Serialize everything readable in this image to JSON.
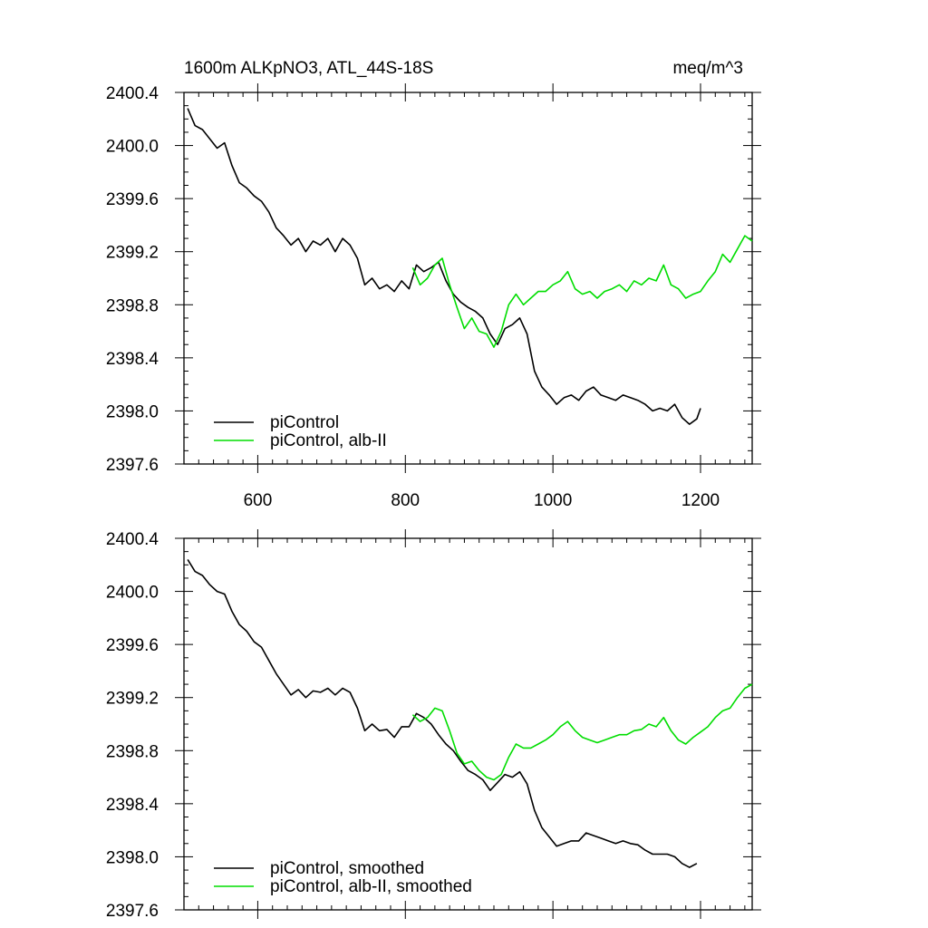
{
  "header": {
    "title_left": "1600m ALKpNO3, ATL_44S-18S",
    "title_right": "meq/m^3"
  },
  "chart_data": [
    {
      "type": "line",
      "xlim": [
        500,
        1270
      ],
      "ylim": [
        2397.6,
        2400.4
      ],
      "x_ticks": [
        "600",
        "800",
        "1000",
        "1200"
      ],
      "y_ticks": [
        "2400.4",
        "2400.0",
        "2399.6",
        "2399.2",
        "2398.8",
        "2398.4",
        "2398.0",
        "2397.6"
      ],
      "legend_placement": "bottom-left",
      "series": [
        {
          "name": "piControl",
          "color": "#000000",
          "x": [
            505,
            515,
            525,
            535,
            545,
            555,
            565,
            575,
            585,
            595,
            605,
            615,
            625,
            635,
            645,
            655,
            665,
            675,
            685,
            695,
            705,
            715,
            725,
            735,
            745,
            755,
            765,
            775,
            785,
            795,
            805,
            815,
            825,
            835,
            845,
            855,
            865,
            875,
            885,
            895,
            905,
            915,
            925,
            935,
            945,
            955,
            965,
            975,
            985,
            995,
            1005,
            1015,
            1025,
            1035,
            1045,
            1055,
            1065,
            1075,
            1085,
            1095,
            1105,
            1115,
            1125,
            1135,
            1145,
            1155,
            1165,
            1175,
            1185,
            1195,
            1200
          ],
          "y": [
            2400.28,
            2400.15,
            2400.12,
            2400.05,
            2399.98,
            2400.02,
            2399.85,
            2399.72,
            2399.68,
            2399.62,
            2399.58,
            2399.5,
            2399.38,
            2399.32,
            2399.25,
            2399.3,
            2399.2,
            2399.28,
            2399.25,
            2399.3,
            2399.2,
            2399.3,
            2399.25,
            2399.15,
            2398.95,
            2399.0,
            2398.92,
            2398.95,
            2398.9,
            2398.98,
            2398.92,
            2399.1,
            2399.05,
            2399.08,
            2399.12,
            2398.98,
            2398.88,
            2398.82,
            2398.78,
            2398.75,
            2398.7,
            2398.58,
            2398.5,
            2398.62,
            2398.65,
            2398.7,
            2398.58,
            2398.3,
            2398.18,
            2398.12,
            2398.05,
            2398.1,
            2398.12,
            2398.08,
            2398.15,
            2398.18,
            2398.12,
            2398.1,
            2398.08,
            2398.12,
            2398.1,
            2398.08,
            2398.05,
            2398.0,
            2398.02,
            2398.0,
            2398.05,
            2397.95,
            2397.9,
            2397.94,
            2398.02
          ]
        },
        {
          "name": "piControl, alb-II",
          "color": "#00dd00",
          "x": [
            810,
            820,
            830,
            840,
            850,
            860,
            870,
            880,
            890,
            900,
            910,
            920,
            930,
            940,
            950,
            960,
            970,
            980,
            990,
            1000,
            1010,
            1020,
            1030,
            1040,
            1050,
            1060,
            1070,
            1080,
            1090,
            1100,
            1110,
            1120,
            1130,
            1140,
            1150,
            1160,
            1170,
            1180,
            1190,
            1200,
            1210,
            1220,
            1230,
            1240,
            1250,
            1260,
            1270
          ],
          "y": [
            2399.08,
            2398.95,
            2399.0,
            2399.1,
            2399.15,
            2398.95,
            2398.78,
            2398.62,
            2398.7,
            2398.6,
            2398.58,
            2398.48,
            2398.6,
            2398.8,
            2398.88,
            2398.8,
            2398.85,
            2398.9,
            2398.9,
            2398.95,
            2398.98,
            2399.05,
            2398.92,
            2398.88,
            2398.9,
            2398.85,
            2398.9,
            2398.92,
            2398.95,
            2398.9,
            2398.98,
            2398.95,
            2399.0,
            2398.98,
            2399.1,
            2398.95,
            2398.92,
            2398.85,
            2398.88,
            2398.9,
            2398.98,
            2399.05,
            2399.18,
            2399.12,
            2399.22,
            2399.32,
            2399.28
          ]
        }
      ]
    },
    {
      "type": "line",
      "xlim": [
        500,
        1270
      ],
      "ylim": [
        2397.6,
        2400.4
      ],
      "y_ticks": [
        "2400.4",
        "2400.0",
        "2399.6",
        "2399.2",
        "2398.8",
        "2398.4",
        "2398.0",
        "2397.6"
      ],
      "legend_placement": "bottom-left",
      "series": [
        {
          "name": "piControl, smoothed",
          "color": "#000000",
          "x": [
            505,
            515,
            525,
            535,
            545,
            555,
            565,
            575,
            585,
            595,
            605,
            615,
            625,
            635,
            645,
            655,
            665,
            675,
            685,
            695,
            705,
            715,
            725,
            735,
            745,
            755,
            765,
            775,
            785,
            795,
            805,
            815,
            825,
            835,
            845,
            855,
            865,
            875,
            885,
            895,
            905,
            915,
            925,
            935,
            945,
            955,
            965,
            975,
            985,
            995,
            1005,
            1015,
            1025,
            1035,
            1045,
            1055,
            1065,
            1075,
            1085,
            1095,
            1105,
            1115,
            1125,
            1135,
            1145,
            1155,
            1165,
            1175,
            1185,
            1195
          ],
          "y": [
            2400.24,
            2400.15,
            2400.12,
            2400.05,
            2400.0,
            2399.98,
            2399.85,
            2399.75,
            2399.7,
            2399.62,
            2399.58,
            2399.48,
            2399.38,
            2399.3,
            2399.22,
            2399.26,
            2399.2,
            2399.25,
            2399.24,
            2399.27,
            2399.22,
            2399.27,
            2399.24,
            2399.12,
            2398.95,
            2399.0,
            2398.95,
            2398.96,
            2398.9,
            2398.98,
            2398.98,
            2399.08,
            2399.05,
            2399.0,
            2398.92,
            2398.85,
            2398.8,
            2398.72,
            2398.65,
            2398.62,
            2398.58,
            2398.5,
            2398.56,
            2398.62,
            2398.6,
            2398.64,
            2398.55,
            2398.35,
            2398.22,
            2398.15,
            2398.08,
            2398.1,
            2398.12,
            2398.12,
            2398.18,
            2398.16,
            2398.14,
            2398.12,
            2398.1,
            2398.12,
            2398.1,
            2398.09,
            2398.05,
            2398.02,
            2398.02,
            2398.02,
            2398.0,
            2397.95,
            2397.92,
            2397.95
          ]
        },
        {
          "name": "piControl, alb-II, smoothed",
          "color": "#00dd00",
          "x": [
            810,
            820,
            830,
            840,
            850,
            860,
            870,
            880,
            890,
            900,
            910,
            920,
            930,
            940,
            950,
            960,
            970,
            980,
            990,
            1000,
            1010,
            1020,
            1030,
            1040,
            1050,
            1060,
            1070,
            1080,
            1090,
            1100,
            1110,
            1120,
            1130,
            1140,
            1150,
            1160,
            1170,
            1180,
            1190,
            1200,
            1210,
            1220,
            1230,
            1240,
            1250,
            1260,
            1270
          ],
          "y": [
            2399.07,
            2399.02,
            2399.05,
            2399.12,
            2399.1,
            2398.95,
            2398.78,
            2398.7,
            2398.72,
            2398.65,
            2398.6,
            2398.58,
            2398.62,
            2398.75,
            2398.85,
            2398.82,
            2398.82,
            2398.85,
            2398.88,
            2398.92,
            2398.98,
            2399.02,
            2398.95,
            2398.9,
            2398.88,
            2398.86,
            2398.88,
            2398.9,
            2398.92,
            2398.92,
            2398.95,
            2398.96,
            2399.0,
            2398.98,
            2399.05,
            2398.95,
            2398.88,
            2398.85,
            2398.9,
            2398.94,
            2398.98,
            2399.05,
            2399.1,
            2399.12,
            2399.2,
            2399.27,
            2399.3
          ]
        }
      ]
    }
  ]
}
